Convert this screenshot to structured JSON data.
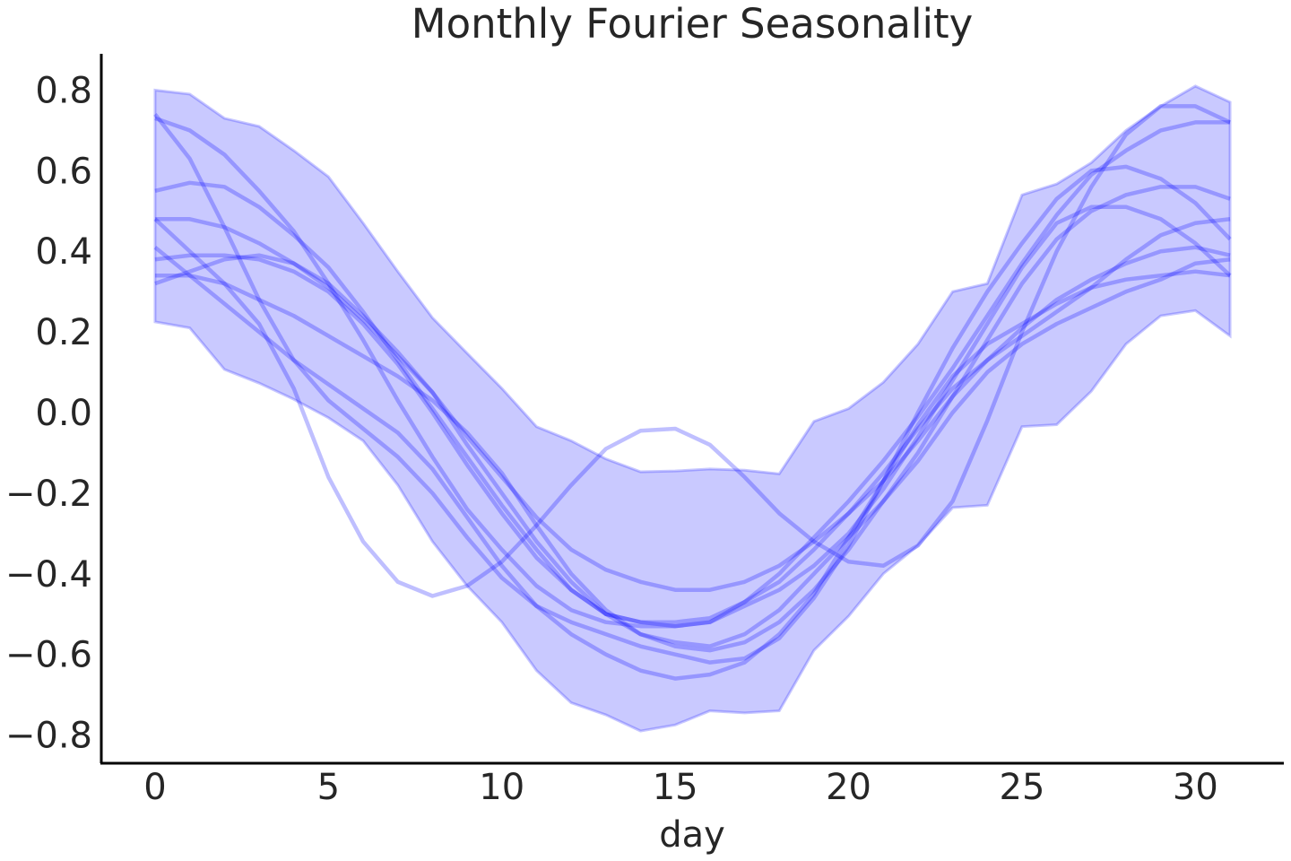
{
  "chart_data": {
    "type": "line",
    "title": "Monthly Fourier Seasonality",
    "x_label": "day",
    "x": [
      0,
      1,
      2,
      3,
      4,
      5,
      6,
      7,
      8,
      9,
      10,
      11,
      12,
      13,
      14,
      15,
      16,
      17,
      18,
      19,
      20,
      21,
      22,
      23,
      24,
      25,
      26,
      27,
      28,
      29,
      30,
      31
    ],
    "xlim": [
      -1.55,
      32.55
    ],
    "xticks": [
      0,
      5,
      10,
      15,
      20,
      25,
      30
    ],
    "ylim": [
      -0.87,
      0.89
    ],
    "yticks": [
      {
        "value": -0.8,
        "label": "−0.8"
      },
      {
        "value": -0.6,
        "label": "−0.6"
      },
      {
        "value": -0.4,
        "label": "−0.4"
      },
      {
        "value": -0.2,
        "label": "−0.2"
      },
      {
        "value": 0,
        "label": "0.0"
      },
      0.2,
      0.4,
      0.6,
      0.8
    ],
    "grid": false,
    "band": {
      "color": "#0000ff",
      "upper": [
        0.8,
        0.79,
        0.73,
        0.71,
        0.65,
        0.585,
        0.47,
        0.35,
        0.235,
        0.147,
        0.06,
        -0.035,
        -0.07,
        -0.115,
        -0.147,
        -0.145,
        -0.14,
        -0.143,
        -0.152,
        -0.022,
        0.01,
        0.075,
        0.17,
        0.3,
        0.32,
        0.54,
        0.567,
        0.62,
        0.7,
        0.76,
        0.81,
        0.77
      ],
      "lower": [
        0.225,
        0.21,
        0.107,
        0.073,
        0.033,
        -0.013,
        -0.07,
        -0.18,
        -0.32,
        -0.43,
        -0.52,
        -0.64,
        -0.72,
        -0.75,
        -0.79,
        -0.775,
        -0.74,
        -0.745,
        -0.74,
        -0.59,
        -0.505,
        -0.4,
        -0.33,
        -0.236,
        -0.23,
        -0.035,
        -0.03,
        0.053,
        0.17,
        0.24,
        0.253,
        0.19
      ]
    },
    "series": [
      {
        "color": "#0000ff",
        "values": [
          0.48,
          0.4,
          0.32,
          0.22,
          0.06,
          -0.16,
          -0.32,
          -0.42,
          -0.455,
          -0.43,
          -0.37,
          -0.28,
          -0.18,
          -0.09,
          -0.045,
          -0.04,
          -0.08,
          -0.16,
          -0.25,
          -0.32,
          -0.37,
          -0.38,
          -0.33,
          -0.22,
          -0.02,
          0.2,
          0.4,
          0.56,
          0.69,
          0.76,
          0.76,
          0.72
        ]
      },
      {
        "color": "#0000ff",
        "values": [
          0.74,
          0.63,
          0.46,
          0.28,
          0.13,
          0.03,
          -0.04,
          -0.11,
          -0.2,
          -0.31,
          -0.41,
          -0.48,
          -0.52,
          -0.55,
          -0.58,
          -0.6,
          -0.62,
          -0.61,
          -0.56,
          -0.46,
          -0.33,
          -0.17,
          0.0,
          0.16,
          0.3,
          0.42,
          0.53,
          0.6,
          0.61,
          0.58,
          0.52,
          0.43
        ]
      },
      {
        "color": "#0000ff",
        "values": [
          0.73,
          0.7,
          0.64,
          0.55,
          0.45,
          0.32,
          0.18,
          0.03,
          -0.11,
          -0.24,
          -0.34,
          -0.43,
          -0.49,
          -0.52,
          -0.53,
          -0.53,
          -0.52,
          -0.47,
          -0.4,
          -0.31,
          -0.22,
          -0.12,
          -0.01,
          0.11,
          0.24,
          0.37,
          0.49,
          0.59,
          0.65,
          0.7,
          0.72,
          0.72
        ]
      },
      {
        "color": "#0000ff",
        "values": [
          0.55,
          0.57,
          0.56,
          0.51,
          0.44,
          0.36,
          0.25,
          0.13,
          0.01,
          -0.11,
          -0.23,
          -0.34,
          -0.44,
          -0.5,
          -0.52,
          -0.53,
          -0.52,
          -0.48,
          -0.44,
          -0.38,
          -0.3,
          -0.19,
          -0.06,
          0.08,
          0.22,
          0.36,
          0.47,
          0.51,
          0.51,
          0.48,
          0.42,
          0.34
        ]
      },
      {
        "color": "#0000ff",
        "values": [
          0.48,
          0.48,
          0.46,
          0.42,
          0.37,
          0.31,
          0.23,
          0.14,
          0.05,
          -0.06,
          -0.16,
          -0.26,
          -0.34,
          -0.39,
          -0.42,
          -0.44,
          -0.44,
          -0.42,
          -0.38,
          -0.32,
          -0.25,
          -0.17,
          -0.07,
          0.04,
          0.13,
          0.21,
          0.28,
          0.33,
          0.37,
          0.4,
          0.41,
          0.39
        ]
      },
      {
        "color": "#0000ff",
        "values": [
          0.41,
          0.34,
          0.27,
          0.2,
          0.13,
          0.07,
          0.01,
          -0.05,
          -0.14,
          -0.26,
          -0.38,
          -0.48,
          -0.55,
          -0.6,
          -0.64,
          -0.66,
          -0.65,
          -0.62,
          -0.55,
          -0.45,
          -0.31,
          -0.17,
          -0.03,
          0.09,
          0.17,
          0.22,
          0.27,
          0.31,
          0.33,
          0.34,
          0.35,
          0.34
        ]
      },
      {
        "color": "#0000ff",
        "values": [
          0.38,
          0.39,
          0.39,
          0.38,
          0.35,
          0.3,
          0.22,
          0.12,
          0.0,
          -0.13,
          -0.25,
          -0.36,
          -0.44,
          -0.5,
          -0.52,
          -0.52,
          -0.51,
          -0.47,
          -0.42,
          -0.34,
          -0.25,
          -0.15,
          -0.04,
          0.06,
          0.13,
          0.19,
          0.25,
          0.31,
          0.38,
          0.44,
          0.47,
          0.48
        ]
      },
      {
        "color": "#0000ff",
        "values": [
          0.34,
          0.34,
          0.32,
          0.28,
          0.24,
          0.19,
          0.14,
          0.09,
          0.03,
          -0.05,
          -0.15,
          -0.28,
          -0.4,
          -0.49,
          -0.55,
          -0.57,
          -0.58,
          -0.55,
          -0.49,
          -0.4,
          -0.31,
          -0.22,
          -0.12,
          0.0,
          0.1,
          0.17,
          0.22,
          0.26,
          0.3,
          0.33,
          0.37,
          0.38
        ]
      },
      {
        "color": "#0000ff",
        "values": [
          0.32,
          0.35,
          0.38,
          0.39,
          0.37,
          0.32,
          0.24,
          0.15,
          0.05,
          -0.08,
          -0.2,
          -0.32,
          -0.42,
          -0.5,
          -0.55,
          -0.58,
          -0.59,
          -0.57,
          -0.52,
          -0.44,
          -0.34,
          -0.22,
          -0.1,
          0.04,
          0.18,
          0.32,
          0.43,
          0.5,
          0.54,
          0.56,
          0.56,
          0.53
        ]
      }
    ]
  }
}
